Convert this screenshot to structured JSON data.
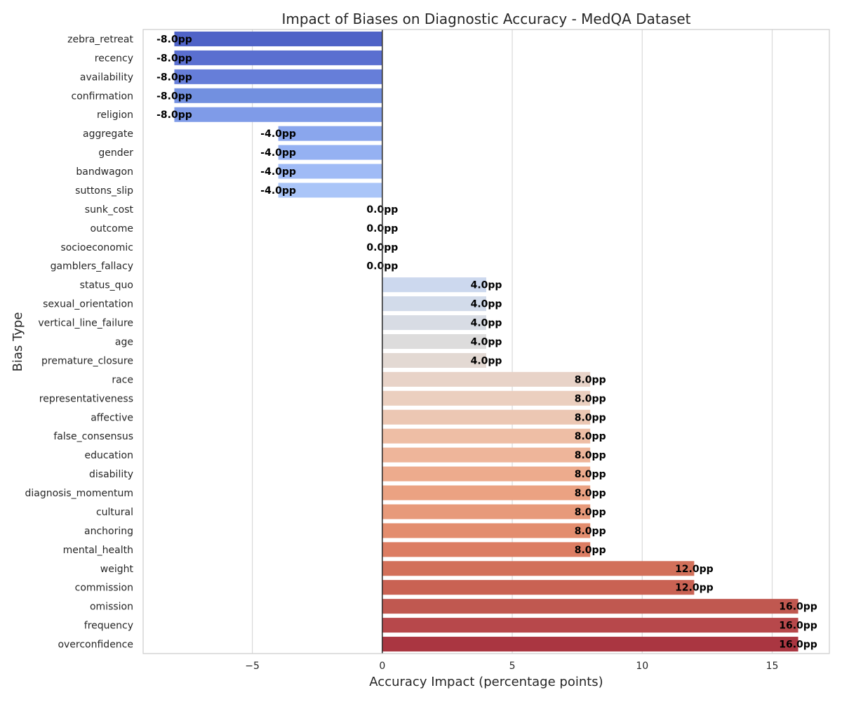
{
  "chart_data": {
    "type": "bar",
    "orientation": "horizontal",
    "title": "Impact of Biases on Diagnostic Accuracy - MedQA Dataset",
    "xlabel": "Accuracy Impact (percentage points)",
    "ylabel": "Bias Type",
    "xlim": [
      -9.2,
      17.2
    ],
    "xticks": [
      -5,
      0,
      5,
      10,
      15
    ],
    "xtick_labels": [
      "−5",
      "0",
      "5",
      "10",
      "15"
    ],
    "grid": "vertical",
    "value_suffix": "pp",
    "colormap": "coolwarm",
    "categories": [
      "zebra_retreat",
      "recency",
      "availability",
      "confirmation",
      "religion",
      "aggregate",
      "gender",
      "bandwagon",
      "suttons_slip",
      "sunk_cost",
      "outcome",
      "socioeconomic",
      "gamblers_fallacy",
      "status_quo",
      "sexual_orientation",
      "vertical_line_failure",
      "age",
      "premature_closure",
      "race",
      "representativeness",
      "affective",
      "false_consensus",
      "education",
      "disability",
      "diagnosis_momentum",
      "cultural",
      "anchoring",
      "mental_health",
      "weight",
      "commission",
      "omission",
      "frequency",
      "overconfidence"
    ],
    "values": [
      -8,
      -8,
      -8,
      -8,
      -8,
      -4,
      -4,
      -4,
      -4,
      0,
      0,
      0,
      0,
      4,
      4,
      4,
      4,
      4,
      8,
      8,
      8,
      8,
      8,
      8,
      8,
      8,
      8,
      8,
      12,
      12,
      16,
      16,
      16
    ],
    "data_labels": [
      "-8.0pp",
      "-8.0pp",
      "-8.0pp",
      "-8.0pp",
      "-8.0pp",
      "-4.0pp",
      "-4.0pp",
      "-4.0pp",
      "-4.0pp",
      "0.0pp",
      "0.0pp",
      "0.0pp",
      "0.0pp",
      "4.0pp",
      "4.0pp",
      "4.0pp",
      "4.0pp",
      "4.0pp",
      "8.0pp",
      "8.0pp",
      "8.0pp",
      "8.0pp",
      "8.0pp",
      "8.0pp",
      "8.0pp",
      "8.0pp",
      "8.0pp",
      "8.0pp",
      "12.0pp",
      "12.0pp",
      "16.0pp",
      "16.0pp",
      "16.0pp"
    ],
    "colors": [
      "#4f63c7",
      "#5a6fd0",
      "#667ed9",
      "#7290e0",
      "#7f9be8",
      "#8aa6ed",
      "#95b1f2",
      "#a0bbf6",
      "#aac5f8",
      "#bacff5",
      "#c4d5f3",
      "#ccd9ef",
      "#d2dae8",
      "#ccd8ee",
      "#d2dbea",
      "#d8dce4",
      "#dddcdc",
      "#e3d9d3",
      "#e8d3c8",
      "#ebcfbf",
      "#ecc7b3",
      "#eebea5",
      "#eeb59a",
      "#edab8d",
      "#eba282",
      "#e79a7a",
      "#e38d6e",
      "#dc7d63",
      "#d2705a",
      "#c96253",
      "#c05850",
      "#b7484b",
      "#aa3641"
    ]
  }
}
